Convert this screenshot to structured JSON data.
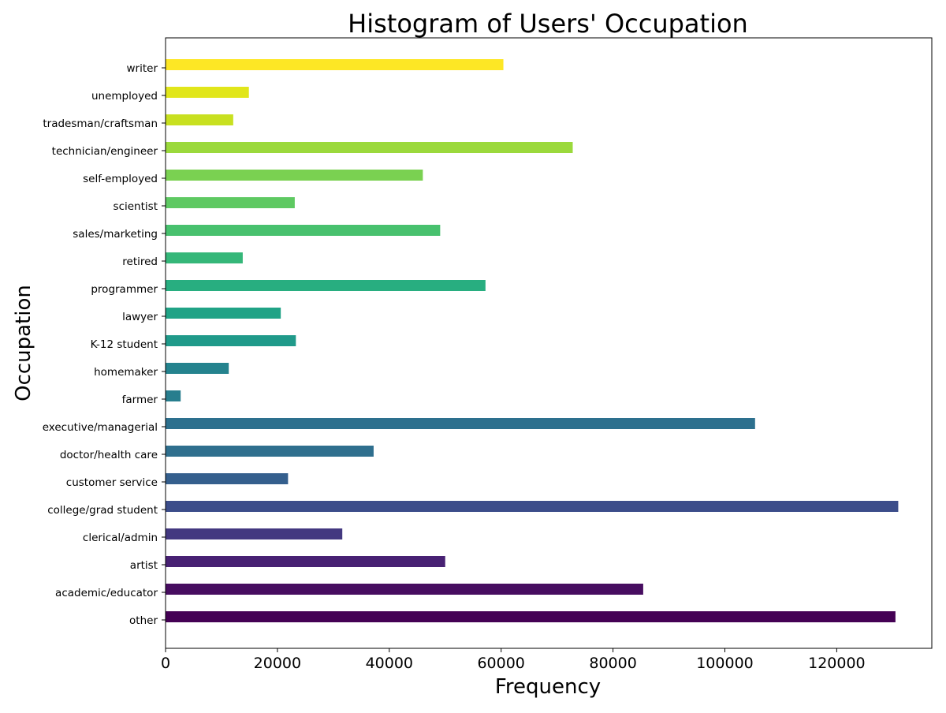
{
  "chart_data": {
    "type": "bar",
    "orientation": "horizontal",
    "title": "Histogram of Users' Occupation",
    "xlabel": "Frequency",
    "ylabel": "Occupation",
    "categories": [
      "other",
      "academic/educator",
      "artist",
      "clerical/admin",
      "college/grad student",
      "customer service",
      "doctor/health care",
      "executive/managerial",
      "farmer",
      "homemaker",
      "K-12 student",
      "lawyer",
      "programmer",
      "retired",
      "sales/marketing",
      "scientist",
      "self-employed",
      "technician/engineer",
      "tradesman/craftsman",
      "unemployed",
      "writer"
    ],
    "values": [
      130500,
      85400,
      50000,
      31600,
      131000,
      21900,
      37200,
      105400,
      2700,
      11300,
      23300,
      20600,
      57200,
      13800,
      49100,
      23100,
      46000,
      72800,
      12100,
      14900,
      60400
    ],
    "colors": [
      "#440154",
      "#470d60",
      "#482173",
      "#433880",
      "#3c4d8a",
      "#355f8d",
      "#2f6f8e",
      "#2d708e",
      "#287e8e",
      "#25838e",
      "#209a8a",
      "#20a386",
      "#28ae80",
      "#35b779",
      "#48c16e",
      "#5ec962",
      "#7ad151",
      "#9bd93c",
      "#c8e020",
      "#e1e61a",
      "#fde725"
    ],
    "xticks": [
      "0",
      "20000",
      "40000",
      "60000",
      "80000",
      "100000",
      "120000"
    ],
    "xtick_values": [
      0,
      20000,
      40000,
      60000,
      80000,
      100000,
      120000
    ],
    "xlim": [
      0,
      137000
    ],
    "grid": false,
    "legend": "none"
  }
}
